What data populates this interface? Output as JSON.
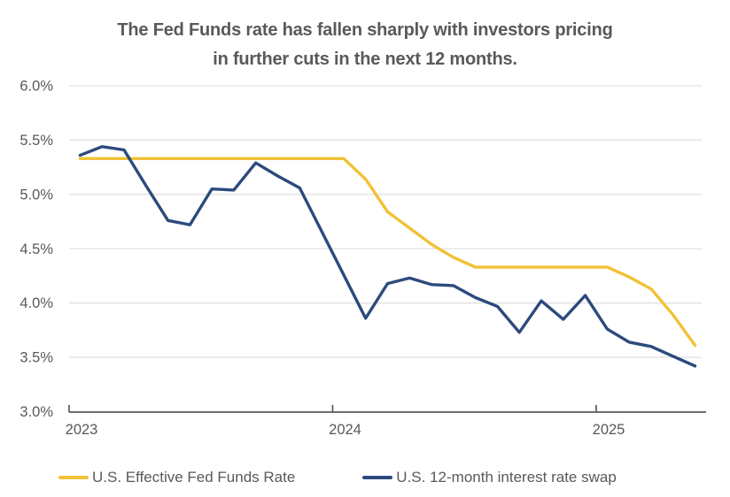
{
  "title": {
    "line1": "The Fed Funds rate has fallen sharply with investors pricing",
    "line2": "in further cuts in the next 12 months."
  },
  "colors": {
    "fed_funds_line": "#F0C237",
    "swap_line": "#2C4A7D",
    "gridline": "#E2E2E2",
    "axis_line": "#595959",
    "text": "#595959",
    "background": "#FFFFFF"
  },
  "legend": [
    {
      "label": "U.S. Effective Fed Funds Rate",
      "color": "#F0C237"
    },
    {
      "label": "U.S. 12-month interest rate swap",
      "color": "#2C4A7D"
    }
  ],
  "y_axis": {
    "tick_labels": [
      "6.0%",
      "5.5%",
      "5.0%",
      "4.5%",
      "4.0%",
      "3.5%",
      "3.0%"
    ],
    "tick_values": [
      6.0,
      5.5,
      5.0,
      4.5,
      4.0,
      3.5,
      3.0
    ],
    "min": 3.0,
    "max": 6.0,
    "step": 0.5
  },
  "x_axis": {
    "tick_labels": [
      "2023",
      "2024",
      "2025"
    ],
    "tick_years": [
      2023,
      2024,
      2025
    ],
    "range_years": [
      2023.0,
      2025.42
    ]
  },
  "chart_data": {
    "type": "line",
    "title": "The Fed Funds rate has fallen sharply with investors pricing in further cuts in the next 12 months.",
    "xlabel": "",
    "ylabel": "",
    "ylim": [
      3.0,
      6.0
    ],
    "grid": true,
    "legend_position": "bottom",
    "x_frequency": "monthly",
    "x_months": [
      "2023-01",
      "2023-02",
      "2023-03",
      "2023-04",
      "2023-05",
      "2023-06",
      "2023-07",
      "2023-08",
      "2023-09",
      "2023-10",
      "2023-11",
      "2023-12",
      "2024-01",
      "2024-02",
      "2024-03",
      "2024-04",
      "2024-05",
      "2024-06",
      "2024-07",
      "2024-08",
      "2024-09",
      "2024-10",
      "2024-11",
      "2024-12",
      "2025-01",
      "2025-02",
      "2025-03",
      "2025-04",
      "2025-05"
    ],
    "series": [
      {
        "name": "U.S. Effective Fed Funds Rate",
        "color": "#F0C237",
        "values": [
          5.33,
          5.33,
          5.33,
          5.33,
          5.33,
          5.33,
          5.33,
          5.33,
          5.33,
          5.33,
          5.33,
          5.33,
          5.33,
          5.14,
          4.84,
          4.69,
          4.54,
          4.42,
          4.33,
          4.33,
          4.33,
          4.33,
          4.33,
          4.33,
          4.33,
          4.24,
          4.13,
          3.89,
          3.61
        ]
      },
      {
        "name": "U.S. 12-month interest rate swap",
        "color": "#2C4A7D",
        "values": [
          5.36,
          5.44,
          5.41,
          5.08,
          4.76,
          4.72,
          5.05,
          5.04,
          5.29,
          5.17,
          5.06,
          4.66,
          4.26,
          3.86,
          4.18,
          4.23,
          4.17,
          4.16,
          4.05,
          3.97,
          3.73,
          4.02,
          3.85,
          4.07,
          3.76,
          3.64,
          3.6,
          3.51,
          3.42
        ]
      }
    ]
  }
}
